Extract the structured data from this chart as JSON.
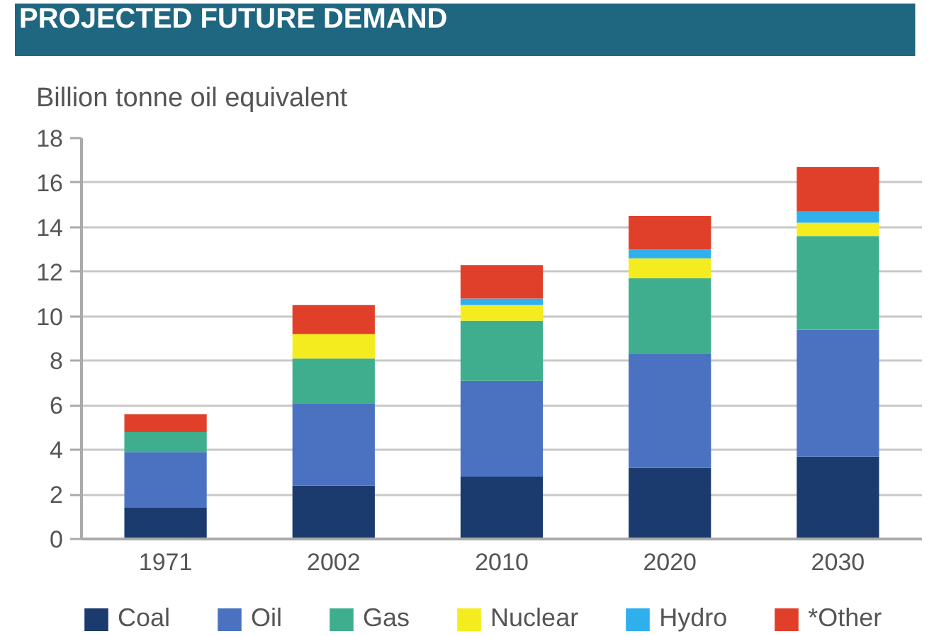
{
  "chart_data": {
    "type": "bar",
    "stacked": true,
    "title": "PROJECTED FUTURE DEMAND",
    "ylabel": "Billion tonne oil equivalent",
    "categories": [
      "1971",
      "2002",
      "2010",
      "2020",
      "2030"
    ],
    "series": [
      {
        "name": "Coal",
        "color": "#1b3a6e",
        "values": [
          1.4,
          2.4,
          2.8,
          3.2,
          3.7
        ]
      },
      {
        "name": "Oil",
        "color": "#4a72c0",
        "values": [
          2.5,
          3.7,
          4.3,
          5.1,
          5.7
        ]
      },
      {
        "name": "Gas",
        "color": "#3fae8e",
        "values": [
          0.9,
          2.0,
          2.7,
          3.4,
          4.2
        ]
      },
      {
        "name": "Nuclear",
        "color": "#f5ec1f",
        "values": [
          null,
          1.1,
          0.7,
          0.9,
          0.6
        ]
      },
      {
        "name": "Hydro",
        "color": "#2fb0ec",
        "values": [
          null,
          null,
          0.3,
          0.4,
          0.5
        ]
      },
      {
        "name": "*Other",
        "color": "#e0402a",
        "values": [
          0.8,
          1.3,
          1.5,
          1.5,
          2.0
        ]
      }
    ],
    "ylim": [
      0,
      18
    ],
    "yticks": [
      0,
      2,
      4,
      6,
      8,
      10,
      12,
      14,
      16,
      18
    ],
    "grid": "y",
    "legend": "bottom"
  }
}
